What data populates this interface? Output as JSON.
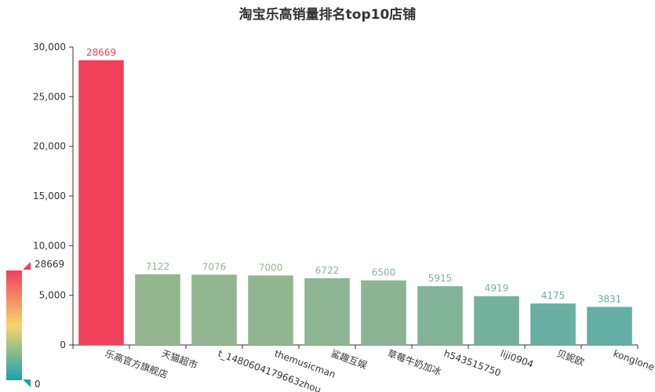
{
  "chart_data": {
    "type": "bar",
    "title": "淘宝乐高销量排名top10店铺",
    "categories": [
      "乐高官方旗舰店",
      "天猫超市",
      "t_1480604179663zhou",
      "themusicman",
      "鲨趣互娱",
      "草莓牛奶加冰",
      "h543515750",
      "liji0904",
      "贝妮欧",
      "konglone"
    ],
    "values": [
      28669,
      7122,
      7076,
      7000,
      6722,
      6500,
      5915,
      4919,
      4175,
      3831
    ],
    "ylim": [
      0,
      30000
    ],
    "yticks": [
      "0",
      "5,000",
      "10,000",
      "15,000",
      "20,000",
      "25,000",
      "30,000"
    ],
    "grid": false,
    "visual_map": {
      "min": 0,
      "max": 28669,
      "min_label": "0",
      "max_label": "28669",
      "colors": [
        "#18a2ad",
        "#f7d56c",
        "#f0405a"
      ]
    }
  }
}
